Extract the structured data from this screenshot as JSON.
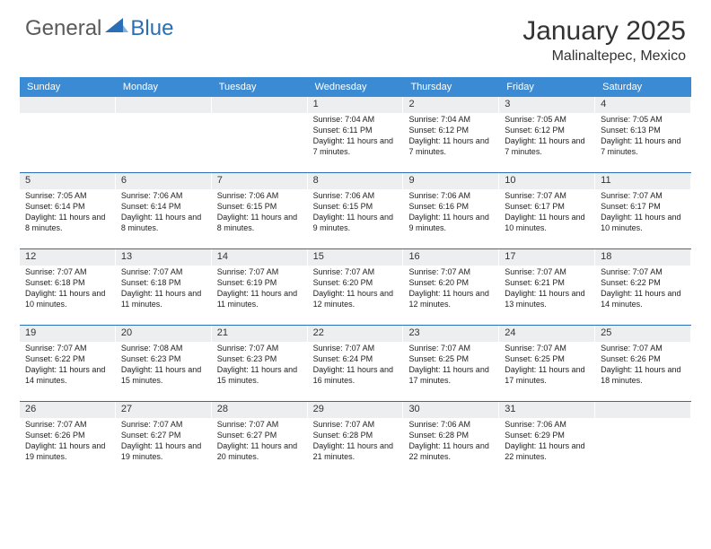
{
  "logo": {
    "general": "General",
    "blue": "Blue"
  },
  "title": "January 2025",
  "location": "Malinaltepec, Mexico",
  "colors": {
    "header_bg": "#3b8bd4",
    "rule": "#2a6fb5",
    "daynum_bg": "#eceef0",
    "text": "#222222"
  },
  "weekdays": [
    "Sunday",
    "Monday",
    "Tuesday",
    "Wednesday",
    "Thursday",
    "Friday",
    "Saturday"
  ],
  "weeks": [
    [
      {
        "n": "",
        "sr": "",
        "ss": "",
        "dl": ""
      },
      {
        "n": "",
        "sr": "",
        "ss": "",
        "dl": ""
      },
      {
        "n": "",
        "sr": "",
        "ss": "",
        "dl": ""
      },
      {
        "n": "1",
        "sr": "7:04 AM",
        "ss": "6:11 PM",
        "dl": "11 hours and 7 minutes."
      },
      {
        "n": "2",
        "sr": "7:04 AM",
        "ss": "6:12 PM",
        "dl": "11 hours and 7 minutes."
      },
      {
        "n": "3",
        "sr": "7:05 AM",
        "ss": "6:12 PM",
        "dl": "11 hours and 7 minutes."
      },
      {
        "n": "4",
        "sr": "7:05 AM",
        "ss": "6:13 PM",
        "dl": "11 hours and 7 minutes."
      }
    ],
    [
      {
        "n": "5",
        "sr": "7:05 AM",
        "ss": "6:14 PM",
        "dl": "11 hours and 8 minutes."
      },
      {
        "n": "6",
        "sr": "7:06 AM",
        "ss": "6:14 PM",
        "dl": "11 hours and 8 minutes."
      },
      {
        "n": "7",
        "sr": "7:06 AM",
        "ss": "6:15 PM",
        "dl": "11 hours and 8 minutes."
      },
      {
        "n": "8",
        "sr": "7:06 AM",
        "ss": "6:15 PM",
        "dl": "11 hours and 9 minutes."
      },
      {
        "n": "9",
        "sr": "7:06 AM",
        "ss": "6:16 PM",
        "dl": "11 hours and 9 minutes."
      },
      {
        "n": "10",
        "sr": "7:07 AM",
        "ss": "6:17 PM",
        "dl": "11 hours and 10 minutes."
      },
      {
        "n": "11",
        "sr": "7:07 AM",
        "ss": "6:17 PM",
        "dl": "11 hours and 10 minutes."
      }
    ],
    [
      {
        "n": "12",
        "sr": "7:07 AM",
        "ss": "6:18 PM",
        "dl": "11 hours and 10 minutes."
      },
      {
        "n": "13",
        "sr": "7:07 AM",
        "ss": "6:18 PM",
        "dl": "11 hours and 11 minutes."
      },
      {
        "n": "14",
        "sr": "7:07 AM",
        "ss": "6:19 PM",
        "dl": "11 hours and 11 minutes."
      },
      {
        "n": "15",
        "sr": "7:07 AM",
        "ss": "6:20 PM",
        "dl": "11 hours and 12 minutes."
      },
      {
        "n": "16",
        "sr": "7:07 AM",
        "ss": "6:20 PM",
        "dl": "11 hours and 12 minutes."
      },
      {
        "n": "17",
        "sr": "7:07 AM",
        "ss": "6:21 PM",
        "dl": "11 hours and 13 minutes."
      },
      {
        "n": "18",
        "sr": "7:07 AM",
        "ss": "6:22 PM",
        "dl": "11 hours and 14 minutes."
      }
    ],
    [
      {
        "n": "19",
        "sr": "7:07 AM",
        "ss": "6:22 PM",
        "dl": "11 hours and 14 minutes."
      },
      {
        "n": "20",
        "sr": "7:08 AM",
        "ss": "6:23 PM",
        "dl": "11 hours and 15 minutes."
      },
      {
        "n": "21",
        "sr": "7:07 AM",
        "ss": "6:23 PM",
        "dl": "11 hours and 15 minutes."
      },
      {
        "n": "22",
        "sr": "7:07 AM",
        "ss": "6:24 PM",
        "dl": "11 hours and 16 minutes."
      },
      {
        "n": "23",
        "sr": "7:07 AM",
        "ss": "6:25 PM",
        "dl": "11 hours and 17 minutes."
      },
      {
        "n": "24",
        "sr": "7:07 AM",
        "ss": "6:25 PM",
        "dl": "11 hours and 17 minutes."
      },
      {
        "n": "25",
        "sr": "7:07 AM",
        "ss": "6:26 PM",
        "dl": "11 hours and 18 minutes."
      }
    ],
    [
      {
        "n": "26",
        "sr": "7:07 AM",
        "ss": "6:26 PM",
        "dl": "11 hours and 19 minutes."
      },
      {
        "n": "27",
        "sr": "7:07 AM",
        "ss": "6:27 PM",
        "dl": "11 hours and 19 minutes."
      },
      {
        "n": "28",
        "sr": "7:07 AM",
        "ss": "6:27 PM",
        "dl": "11 hours and 20 minutes."
      },
      {
        "n": "29",
        "sr": "7:07 AM",
        "ss": "6:28 PM",
        "dl": "11 hours and 21 minutes."
      },
      {
        "n": "30",
        "sr": "7:06 AM",
        "ss": "6:28 PM",
        "dl": "11 hours and 22 minutes."
      },
      {
        "n": "31",
        "sr": "7:06 AM",
        "ss": "6:29 PM",
        "dl": "11 hours and 22 minutes."
      },
      {
        "n": "",
        "sr": "",
        "ss": "",
        "dl": ""
      }
    ]
  ],
  "labels": {
    "sunrise": "Sunrise:",
    "sunset": "Sunset:",
    "daylight": "Daylight:"
  }
}
